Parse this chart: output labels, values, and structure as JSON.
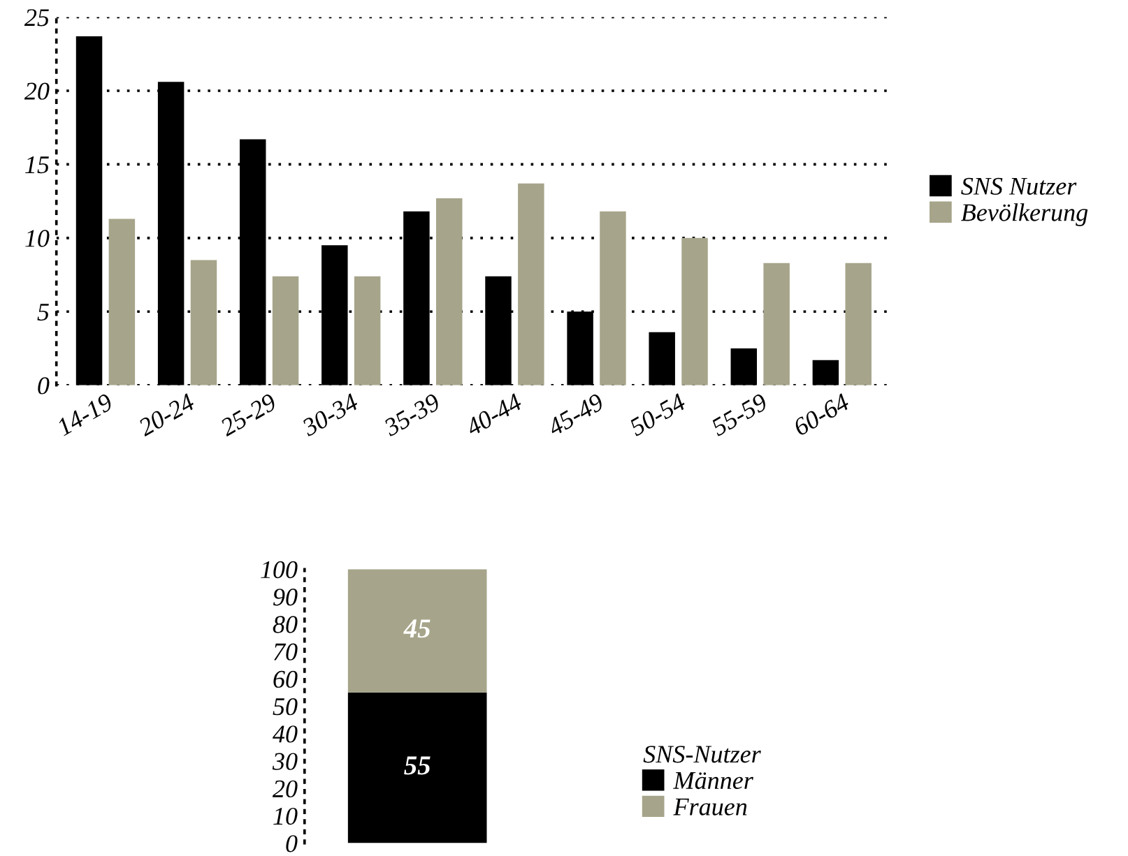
{
  "chart_data": [
    {
      "type": "bar",
      "categories": [
        "14-19",
        "20-24",
        "25-29",
        "30-34",
        "35-39",
        "40-44",
        "45-49",
        "50-54",
        "55-59",
        "60-64"
      ],
      "series": [
        {
          "name": "SNS Nutzer",
          "color": "#000000",
          "values": [
            23.7,
            20.6,
            16.7,
            9.5,
            11.8,
            7.4,
            5.0,
            3.6,
            2.5,
            1.7
          ]
        },
        {
          "name": "Bevölkerung",
          "color": "#a6a48a",
          "values": [
            11.3,
            8.5,
            7.4,
            7.4,
            12.7,
            13.7,
            11.8,
            10.0,
            8.3,
            8.3
          ]
        }
      ],
      "ylim": [
        0,
        25
      ],
      "yticks": [
        0,
        5,
        10,
        15,
        20,
        25
      ],
      "grid": "y",
      "legend": "right"
    },
    {
      "type": "bar",
      "stacked": true,
      "categories": [
        null
      ],
      "legend_title": "SNS-Nutzer",
      "series": [
        {
          "name": "Männer",
          "color": "#000000",
          "values": [
            55
          ]
        },
        {
          "name": "Frauen",
          "color": "#a6a48a",
          "values": [
            45
          ]
        }
      ],
      "ylim": [
        0,
        100
      ],
      "yticks": [
        0,
        10,
        20,
        30,
        40,
        50,
        60,
        70,
        80,
        90,
        100
      ],
      "data_labels": true,
      "legend": "bottom right"
    }
  ]
}
